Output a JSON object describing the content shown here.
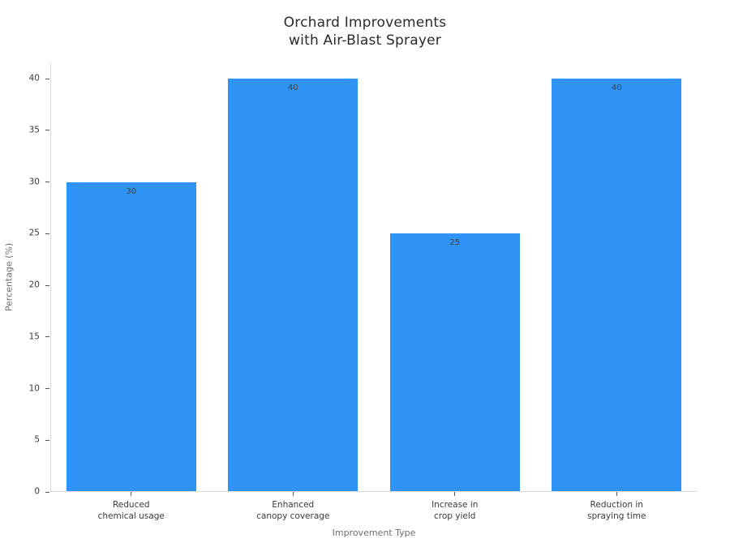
{
  "chart": {
    "title_line1": "Orchard Improvements",
    "title_line2": "with Air-Blast Sprayer",
    "xlabel": "Improvement Type",
    "ylabel": "Percentage (%)"
  },
  "chart_data": {
    "type": "bar",
    "title": "Orchard Improvements with Air-Blast Sprayer",
    "categories": [
      "Reduced\nchemical usage",
      "Enhanced\ncanopy coverage",
      "Increase in\ncrop yield",
      "Reduction in\nspraying time"
    ],
    "values": [
      30,
      40,
      25,
      40
    ],
    "bar_value_labels": [
      "30",
      "40",
      "25",
      "40"
    ],
    "xlabel": "Improvement Type",
    "ylabel": "Percentage (%)",
    "ylim": [
      0,
      41.5
    ],
    "yticks": [
      0,
      5,
      10,
      15,
      20,
      25,
      30,
      35,
      40
    ],
    "grid": false,
    "legend": null,
    "bar_width_fraction": 0.8,
    "colors": {
      "bar": "#2e93f5",
      "axis_line": "#d9d9d9",
      "tick_mark": "#555555",
      "tick_label": "#3b3b3b",
      "axis_title": "#6e6e6e",
      "chart_title": "#2a2a2a",
      "bar_value_label": "#3d4348"
    }
  }
}
